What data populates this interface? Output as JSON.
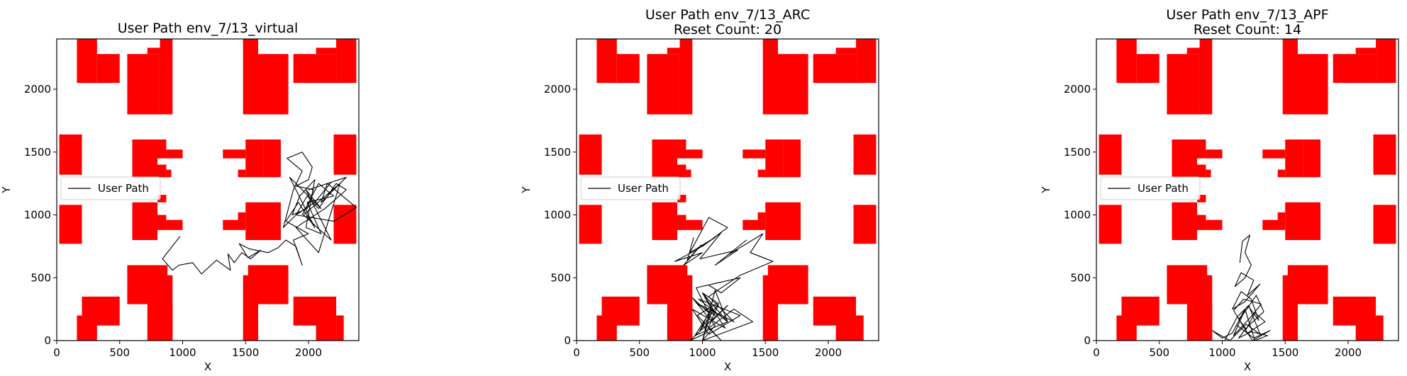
{
  "chart_data": [
    {
      "type": "line",
      "title": "User Path env_7/13_virtual",
      "subtitle": "",
      "xlabel": "X",
      "ylabel": "Y",
      "xlim": [
        0,
        2400
      ],
      "ylim": [
        0,
        2400
      ],
      "xticks": [
        0,
        500,
        1000,
        1500,
        2000
      ],
      "yticks": [
        0,
        500,
        1000,
        1500,
        2000
      ],
      "obstacle_color": "#ff0000",
      "path_color": "#000000",
      "legend": {
        "label": "User Path",
        "placement": "center-left"
      },
      "series": [
        {
          "name": "User Path",
          "x": [
            980,
            840,
            920,
            970,
            1080,
            1150,
            1270,
            1380,
            1360,
            1410,
            1470,
            1540,
            1620,
            1520,
            1450,
            1530,
            1680,
            1760,
            1820,
            1900,
            1950,
            1880,
            2000,
            1820,
            1920,
            2050,
            1850,
            2100,
            1980,
            2180,
            1960,
            2250,
            2080,
            1900,
            2130,
            2300,
            2220,
            2080,
            1990,
            1900,
            2200,
            2380,
            2150,
            2100,
            2300,
            2000,
            2180,
            2050,
            1900,
            1800,
            1880,
            1950,
            1830,
            1950,
            2030,
            2000,
            1900,
            2040,
            1990,
            1870,
            1930,
            2050,
            1980,
            2100,
            1990,
            2200,
            2080,
            1950
          ],
          "y": [
            830,
            650,
            560,
            600,
            620,
            530,
            640,
            560,
            690,
            620,
            700,
            650,
            720,
            660,
            770,
            730,
            700,
            740,
            800,
            750,
            600,
            800,
            850,
            950,
            1100,
            900,
            1300,
            1050,
            1200,
            800,
            1000,
            1250,
            700,
            900,
            1050,
            1200,
            1250,
            1050,
            1150,
            1000,
            950,
            1060,
            1250,
            1100,
            1300,
            1200,
            1260,
            1100,
            1000,
            900,
            1200,
            1350,
            1450,
            1500,
            1380,
            1280,
            1230,
            1200,
            1050,
            1000,
            1150,
            1280,
            900,
            850,
            1100,
            1150,
            1250,
            1000
          ]
        }
      ]
    },
    {
      "type": "line",
      "title": "User Path env_7/13_ARC",
      "subtitle": "Reset Count: 20",
      "xlabel": "X",
      "ylabel": "Y",
      "xlim": [
        0,
        2400
      ],
      "ylim": [
        0,
        2400
      ],
      "xticks": [
        0,
        500,
        1000,
        1500,
        2000
      ],
      "yticks": [
        0,
        500,
        1000,
        1500,
        2000
      ],
      "obstacle_color": "#ff0000",
      "path_color": "#000000",
      "legend": {
        "label": "User Path",
        "placement": "center-left"
      },
      "series": [
        {
          "name": "User Path",
          "x": [
            930,
            880,
            990,
            850,
            1000,
            780,
            950,
            1100,
            900,
            1050,
            1200,
            1000,
            1150,
            980,
            1280,
            1100,
            1350,
            1200,
            1480,
            1380,
            1560,
            1300,
            1150,
            1050,
            1250,
            950,
            1100,
            1000,
            1180,
            920,
            1050,
            1300,
            970,
            1200,
            1100,
            1000,
            1400,
            1250,
            1050,
            1150,
            960,
            1120,
            1000,
            1200,
            940,
            1080,
            1000,
            1100,
            920,
            1050,
            980,
            1130,
            1030,
            900,
            1200,
            1080,
            950,
            1300,
            1150,
            1050
          ],
          "y": [
            820,
            640,
            760,
            600,
            700,
            630,
            720,
            820,
            700,
            980,
            900,
            750,
            860,
            650,
            720,
            600,
            800,
            680,
            850,
            700,
            630,
            520,
            420,
            350,
            150,
            300,
            200,
            380,
            100,
            250,
            50,
            200,
            330,
            150,
            400,
            0,
            150,
            250,
            100,
            0,
            200,
            300,
            380,
            150,
            40,
            260,
            0,
            120,
            340,
            220,
            80,
            300,
            60,
            0,
            280,
            160,
            420,
            500,
            380,
            440
          ]
        }
      ]
    },
    {
      "type": "line",
      "title": "User Path env_7/13_APF",
      "subtitle": "Reset Count: 14",
      "xlabel": "X",
      "ylabel": "Y",
      "xlim": [
        0,
        2400
      ],
      "ylim": [
        0,
        2400
      ],
      "xticks": [
        0,
        500,
        1000,
        1500,
        2000
      ],
      "yticks": [
        0,
        500,
        1000,
        1500,
        2000
      ],
      "obstacle_color": "#ff0000",
      "path_color": "#000000",
      "legend": {
        "label": "User Path",
        "placement": "center-left"
      },
      "series": [
        {
          "name": "User Path",
          "x": [
            1140,
            1160,
            1220,
            1180,
            1230,
            1180,
            1100,
            1150,
            1250,
            1200,
            1300,
            1180,
            1080,
            1150,
            1230,
            1290,
            1210,
            1130,
            1190,
            1260,
            1340,
            1200,
            1120,
            1250,
            1380,
            1240,
            1150,
            1090,
            1170,
            1310,
            1220,
            1090,
            1160,
            1270,
            1330,
            1200,
            1130,
            1230,
            1360,
            1260,
            1180,
            1080,
            1000,
            920,
            1060,
            1190,
            1300,
            1210,
            1120,
            1020
          ],
          "y": [
            620,
            790,
            840,
            700,
            600,
            500,
            430,
            540,
            480,
            360,
            450,
            310,
            250,
            390,
            330,
            160,
            270,
            170,
            90,
            220,
            150,
            60,
            120,
            20,
            80,
            0,
            140,
            240,
            330,
            290,
            180,
            40,
            200,
            360,
            230,
            110,
            20,
            70,
            40,
            0,
            250,
            60,
            20,
            80,
            0,
            130,
            50,
            280,
            190,
            0
          ]
        }
      ]
    }
  ]
}
